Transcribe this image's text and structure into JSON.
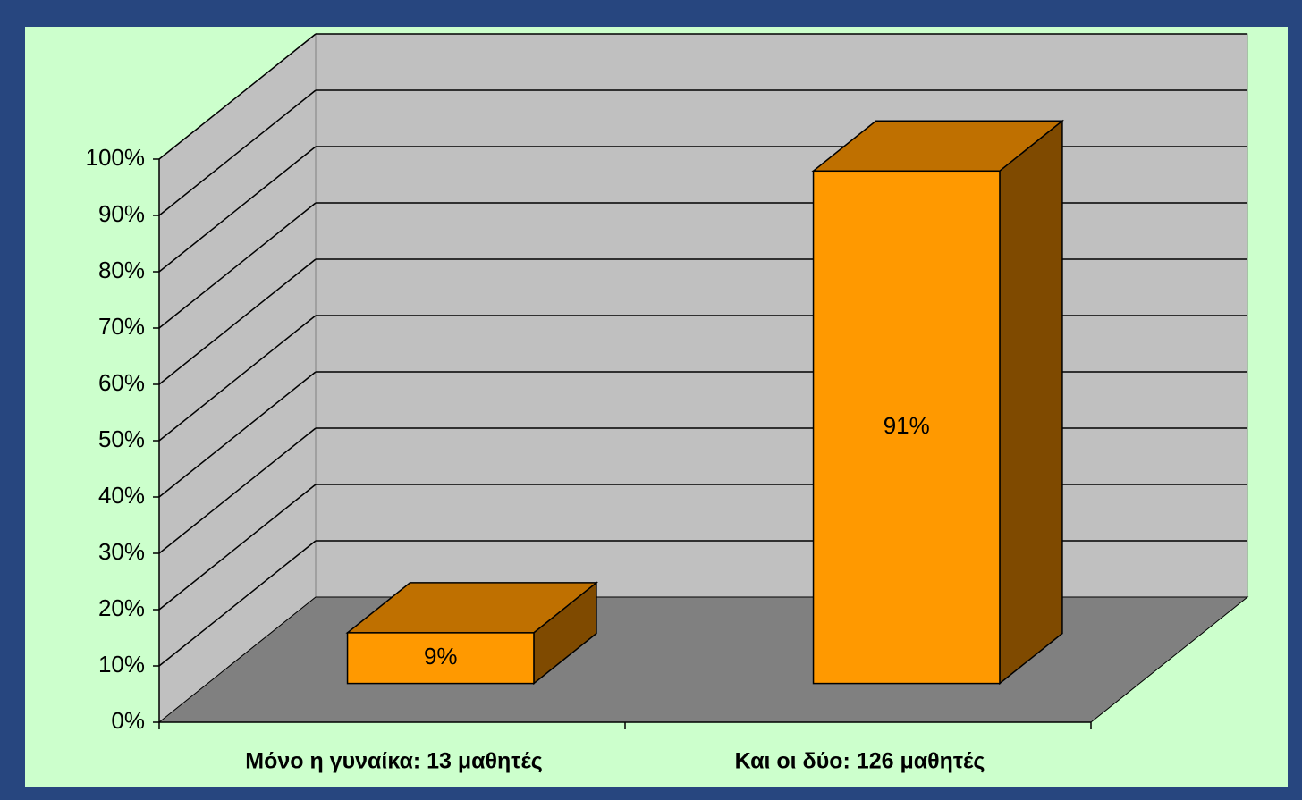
{
  "chart_data": {
    "type": "bar3d",
    "categories": [
      "Μόνο η γυναίκα: 13 μαθητές",
      "Και οι δύο: 126 μαθητές"
    ],
    "values": [
      9,
      91
    ],
    "value_labels": [
      "9%",
      "91%"
    ],
    "color": "#ff9900",
    "ylim": [
      0,
      100
    ],
    "yticks": [
      {
        "value": 0,
        "label": "0%"
      },
      {
        "value": 10,
        "label": "10%"
      },
      {
        "value": 20,
        "label": "20%"
      },
      {
        "value": 30,
        "label": "30%"
      },
      {
        "value": 40,
        "label": "40%"
      },
      {
        "value": 50,
        "label": "50%"
      },
      {
        "value": 60,
        "label": "60%"
      },
      {
        "value": 70,
        "label": "70%"
      },
      {
        "value": 80,
        "label": "80%"
      },
      {
        "value": 90,
        "label": "90%"
      },
      {
        "value": 100,
        "label": "100%"
      }
    ],
    "grid": true
  }
}
